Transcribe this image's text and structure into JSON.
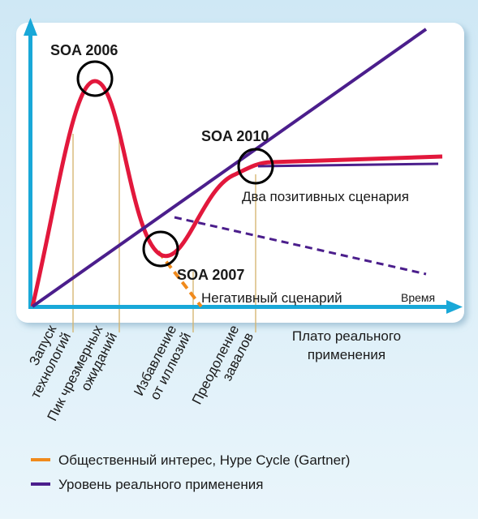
{
  "annotations": {
    "peak": "SOA 2006",
    "plateau_point": "SOA 2010",
    "trough": "SOA 2007",
    "positive": "Два позитивных сценария",
    "negative": "Негативный сценарий",
    "time": "Время"
  },
  "phases": [
    [
      "Запуск",
      "технологий"
    ],
    [
      "Пик чрезмерных",
      "ожиданий"
    ],
    [
      "Избавление",
      "от иллюзий"
    ],
    [
      "Преодоление",
      "завалов"
    ]
  ],
  "plateau": [
    "Плато реального",
    "применения"
  ],
  "legend": [
    "Общественный интерес, Hype Cycle (Gartner)",
    "Уровень реального применения"
  ]
}
